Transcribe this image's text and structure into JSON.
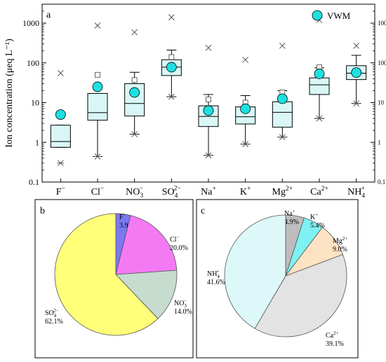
{
  "chart_data": [
    {
      "panel": "a",
      "type": "box",
      "ylabel": "Ion concentration (μeq L⁻¹)",
      "yscale": "log",
      "ylim": [
        0.1,
        3000
      ],
      "yticks": [
        0.1,
        1,
        10,
        100,
        1000
      ],
      "ytick_labels": [
        "0.1",
        "1",
        "10",
        "100",
        "1000"
      ],
      "legend": {
        "label": "VWM",
        "placement": "top-right"
      },
      "categories": [
        {
          "ion": "F",
          "charge": "−",
          "sub": ""
        },
        {
          "ion": "Cl",
          "charge": "−",
          "sub": ""
        },
        {
          "ion": "NO",
          "charge": "−",
          "sub": "3"
        },
        {
          "ion": "SO",
          "charge": "2−",
          "sub": "4"
        },
        {
          "ion": "Na",
          "charge": "+",
          "sub": ""
        },
        {
          "ion": "K",
          "charge": "+",
          "sub": ""
        },
        {
          "ion": "Mg",
          "charge": "2+",
          "sub": ""
        },
        {
          "ion": "Ca",
          "charge": "2+",
          "sub": ""
        },
        {
          "ion": "NH",
          "charge": "+",
          "sub": "4"
        }
      ],
      "series": [
        {
          "q1": 0.75,
          "median": 1.05,
          "q3": 2.7,
          "whisker_low": 0.75,
          "whisker_high": 2.7,
          "p1": 0.3,
          "max": 55,
          "mean": null,
          "vwm": 5.0
        },
        {
          "q1": 3.6,
          "median": 5.6,
          "q3": 17,
          "whisker_low": 0.44,
          "whisker_high": 17,
          "p1": 0.44,
          "max": 870,
          "mean": 50,
          "vwm": 25
        },
        {
          "q1": 4.6,
          "median": 9.5,
          "q3": 30,
          "whisker_low": 1.6,
          "whisker_high": 58,
          "p1": 1.6,
          "max": 590,
          "mean": 37,
          "vwm": 18
        },
        {
          "q1": 48,
          "median": 78,
          "q3": 120,
          "whisker_low": 14,
          "whisker_high": 210,
          "p1": 14,
          "max": 1400,
          "mean": 140,
          "vwm": 78
        },
        {
          "q1": 2.5,
          "median": 4.5,
          "q3": 8.3,
          "whisker_low": 0.47,
          "whisker_high": 16,
          "p1": 0.47,
          "max": 240,
          "mean": 12,
          "vwm": 6.3
        },
        {
          "q1": 2.9,
          "median": 4.4,
          "q3": 7.8,
          "whisker_low": 0.9,
          "whisker_high": 15,
          "p1": 0.9,
          "max": 120,
          "mean": 10,
          "vwm": 7.0
        },
        {
          "q1": 2.4,
          "median": 5.7,
          "q3": 10.5,
          "whisker_low": 1.35,
          "whisker_high": 20,
          "p1": 1.35,
          "max": 270,
          "mean": 18,
          "vwm": 12.5
        },
        {
          "q1": 16,
          "median": 28,
          "q3": 42,
          "whisker_low": 4.0,
          "whisker_high": 75,
          "p1": 4.0,
          "max": 1200,
          "mean": 78,
          "vwm": 53
        },
        {
          "q1": 38,
          "median": 55,
          "q3": 85,
          "whisker_low": 9.5,
          "whisker_high": 155,
          "p1": 9.5,
          "max": 270,
          "mean": null,
          "vwm": 57
        }
      ]
    },
    {
      "panel": "b",
      "type": "pie",
      "slices": [
        {
          "ion": "F",
          "charge": "−",
          "sub": "",
          "pct": "3.9%",
          "value": 3.9,
          "color": "#7b79f2"
        },
        {
          "ion": "Cl",
          "charge": "−",
          "sub": "",
          "pct": "20.0%",
          "value": 20.0,
          "color": "#f47af4"
        },
        {
          "ion": "NO",
          "charge": "−",
          "sub": "3",
          "pct": "14.0%",
          "value": 14.0,
          "color": "#c5dccf"
        },
        {
          "ion": "SO",
          "charge": "2−",
          "sub": "4",
          "pct": "62.1%",
          "value": 62.1,
          "color": "#ffff7a"
        }
      ]
    },
    {
      "panel": "c",
      "type": "pie",
      "slices": [
        {
          "ion": "Na",
          "charge": "+",
          "sub": "",
          "pct": "4.9%",
          "value": 4.9,
          "color": "#bdbdbd"
        },
        {
          "ion": "K",
          "charge": "+",
          "sub": "",
          "pct": "5.4%",
          "value": 5.4,
          "color": "#7ef2f2"
        },
        {
          "ion": "Mg",
          "charge": "2+",
          "sub": "",
          "pct": "9.0%",
          "value": 9.0,
          "color": "#fde3c3"
        },
        {
          "ion": "Ca",
          "charge": "2+",
          "sub": "",
          "pct": "39.1%",
          "value": 39.1,
          "color": "#e3e3e3"
        },
        {
          "ion": "NH",
          "charge": "+",
          "sub": "4",
          "pct": "41.6%",
          "value": 41.6,
          "color": "#dcf8f8"
        }
      ]
    }
  ],
  "colors": {
    "box_fill": "#d9f7f7",
    "vwm_marker": "#1ee0e0"
  }
}
